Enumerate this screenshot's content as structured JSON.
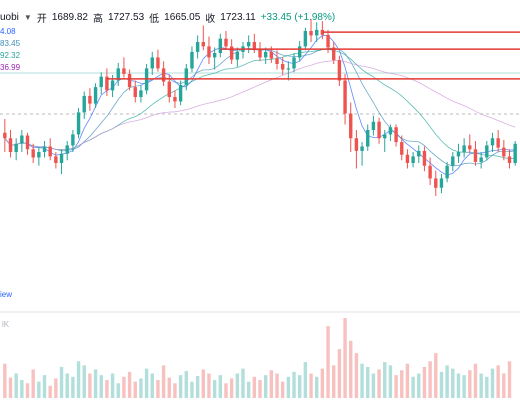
{
  "ohlc_bar": {
    "symbol_fragment": "uobi",
    "open_label": "开",
    "open_value": "1689.82",
    "high_label": "高",
    "high_value": "1727.53",
    "low_label": "低",
    "low_value": "1665.05",
    "close_label": "收",
    "close_value": "1723.11",
    "change": "+33.45 (+1.98%)"
  },
  "ma_labels": [
    {
      "text": "4.08",
      "color": "#2962ff"
    },
    {
      "text": "83.45",
      "color": "#3e8eb8"
    },
    {
      "text": "92.32",
      "color": "#26a69a"
    },
    {
      "text": "36.99",
      "color": "#9c27b0"
    }
  ],
  "volume_label": "lK",
  "watermark_fragment": "iew",
  "colors": {
    "up": "#26a69a",
    "down": "#ef5350",
    "vol_up": "#b2dfdb",
    "vol_down": "#f7c1c0"
  },
  "chart_data": {
    "type": "candlestick",
    "price_range": [
      1400,
      1840
    ],
    "candles": [
      [
        1635,
        1660,
        1600,
        1625
      ],
      [
        1625,
        1640,
        1590,
        1600
      ],
      [
        1600,
        1625,
        1585,
        1615
      ],
      [
        1615,
        1640,
        1600,
        1630
      ],
      [
        1630,
        1635,
        1595,
        1605
      ],
      [
        1605,
        1615,
        1580,
        1590
      ],
      [
        1590,
        1610,
        1575,
        1600
      ],
      [
        1600,
        1620,
        1590,
        1610
      ],
      [
        1610,
        1625,
        1585,
        1592
      ],
      [
        1592,
        1600,
        1570,
        1580
      ],
      [
        1580,
        1605,
        1560,
        1597
      ],
      [
        1597,
        1620,
        1585,
        1612
      ],
      [
        1612,
        1640,
        1600,
        1632
      ],
      [
        1632,
        1680,
        1625,
        1672
      ],
      [
        1672,
        1710,
        1660,
        1702
      ],
      [
        1702,
        1716,
        1675,
        1688
      ],
      [
        1688,
        1725,
        1680,
        1718
      ],
      [
        1718,
        1745,
        1705,
        1737
      ],
      [
        1737,
        1752,
        1702,
        1712
      ],
      [
        1712,
        1740,
        1700,
        1730
      ],
      [
        1730,
        1762,
        1720,
        1752
      ],
      [
        1752,
        1772,
        1736,
        1742
      ],
      [
        1742,
        1750,
        1712,
        1718
      ],
      [
        1718,
        1730,
        1690,
        1700
      ],
      [
        1700,
        1722,
        1690,
        1712
      ],
      [
        1712,
        1760,
        1705,
        1752
      ],
      [
        1752,
        1782,
        1740,
        1772
      ],
      [
        1772,
        1786,
        1746,
        1752
      ],
      [
        1752,
        1765,
        1720,
        1728
      ],
      [
        1728,
        1740,
        1690,
        1700
      ],
      [
        1700,
        1712,
        1680,
        1692
      ],
      [
        1692,
        1730,
        1685,
        1722
      ],
      [
        1722,
        1760,
        1712,
        1752
      ],
      [
        1752,
        1792,
        1745,
        1782
      ],
      [
        1782,
        1812,
        1770,
        1800
      ],
      [
        1800,
        1830,
        1785,
        1792
      ],
      [
        1792,
        1810,
        1760,
        1772
      ],
      [
        1772,
        1790,
        1750,
        1780
      ],
      [
        1780,
        1815,
        1772,
        1806
      ],
      [
        1806,
        1820,
        1786,
        1792
      ],
      [
        1792,
        1805,
        1760,
        1768
      ],
      [
        1768,
        1790,
        1755,
        1782
      ],
      [
        1782,
        1800,
        1770,
        1792
      ],
      [
        1792,
        1812,
        1780,
        1800
      ],
      [
        1800,
        1815,
        1780,
        1786
      ],
      [
        1786,
        1800,
        1765,
        1772
      ],
      [
        1772,
        1790,
        1760,
        1782
      ],
      [
        1782,
        1792,
        1762,
        1770
      ],
      [
        1770,
        1785,
        1750,
        1760
      ],
      [
        1760,
        1772,
        1740,
        1750
      ],
      [
        1750,
        1765,
        1730,
        1752
      ],
      [
        1752,
        1780,
        1745,
        1772
      ],
      [
        1772,
        1802,
        1765,
        1792
      ],
      [
        1792,
        1826,
        1785,
        1820
      ],
      [
        1820,
        1842,
        1800,
        1812
      ],
      [
        1812,
        1836,
        1800,
        1822
      ],
      [
        1822,
        1838,
        1805,
        1813
      ],
      [
        1813,
        1822,
        1780,
        1790
      ],
      [
        1790,
        1800,
        1760,
        1767
      ],
      [
        1767,
        1775,
        1720,
        1730
      ],
      [
        1730,
        1742,
        1650,
        1670
      ],
      [
        1670,
        1690,
        1600,
        1625
      ],
      [
        1625,
        1640,
        1570,
        1602
      ],
      [
        1602,
        1618,
        1575,
        1610
      ],
      [
        1610,
        1650,
        1602,
        1640
      ],
      [
        1640,
        1666,
        1630,
        1655
      ],
      [
        1655,
        1662,
        1615,
        1625
      ],
      [
        1625,
        1640,
        1600,
        1632
      ],
      [
        1632,
        1650,
        1620,
        1645
      ],
      [
        1645,
        1650,
        1610,
        1618
      ],
      [
        1618,
        1630,
        1585,
        1595
      ],
      [
        1595,
        1605,
        1570,
        1580
      ],
      [
        1580,
        1600,
        1572,
        1592
      ],
      [
        1592,
        1612,
        1580,
        1602
      ],
      [
        1602,
        1610,
        1565,
        1575
      ],
      [
        1575,
        1590,
        1540,
        1552
      ],
      [
        1552,
        1566,
        1520,
        1535
      ],
      [
        1535,
        1560,
        1525,
        1552
      ],
      [
        1552,
        1582,
        1545,
        1575
      ],
      [
        1575,
        1600,
        1565,
        1592
      ],
      [
        1592,
        1615,
        1580,
        1600
      ],
      [
        1600,
        1625,
        1590,
        1612
      ],
      [
        1612,
        1632,
        1598,
        1605
      ],
      [
        1605,
        1620,
        1575,
        1582
      ],
      [
        1582,
        1600,
        1570,
        1590
      ],
      [
        1590,
        1620,
        1585,
        1612
      ],
      [
        1612,
        1635,
        1600,
        1625
      ],
      [
        1625,
        1640,
        1600,
        1608
      ],
      [
        1608,
        1622,
        1585,
        1592
      ],
      [
        1592,
        1605,
        1570,
        1580
      ],
      [
        1580,
        1620,
        1575,
        1615
      ]
    ],
    "volumes": [
      42,
      25,
      30,
      22,
      18,
      35,
      20,
      28,
      15,
      24,
      38,
      30,
      26,
      45,
      40,
      30,
      35,
      28,
      22,
      30,
      18,
      26,
      32,
      20,
      24,
      36,
      30,
      22,
      40,
      25,
      18,
      28,
      33,
      20,
      27,
      35,
      30,
      22,
      28,
      18,
      24,
      30,
      36,
      20,
      26,
      22,
      28,
      34,
      30,
      20,
      26,
      32,
      28,
      44,
      30,
      26,
      36,
      88,
      40,
      60,
      98,
      70,
      55,
      42,
      38,
      30,
      35,
      44,
      40,
      28,
      34,
      42,
      26,
      30,
      38,
      45,
      55,
      32,
      40,
      36,
      30,
      28,
      34,
      42,
      30,
      26,
      36,
      40,
      30,
      45
    ],
    "horizontal_lines": [
      {
        "price": 1818
      },
      {
        "price": 1787
      },
      {
        "price": 1733
      }
    ]
  }
}
